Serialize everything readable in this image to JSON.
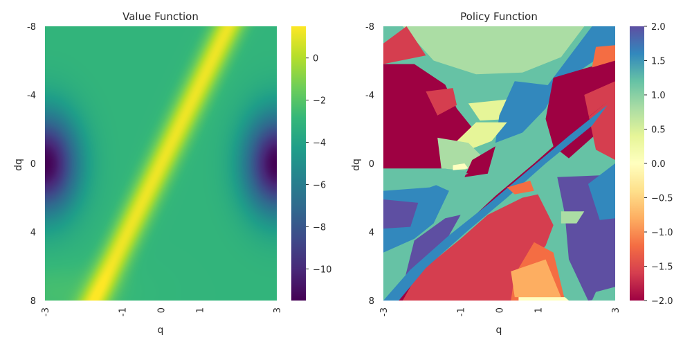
{
  "chart_data": [
    {
      "type": "heatmap",
      "title": "Value Function",
      "xlabel": "q",
      "ylabel": "dq",
      "x_tick_labels": [
        "-3",
        "-1",
        "0",
        "1",
        "3"
      ],
      "y_tick_labels": [
        "-8",
        "-4",
        "0",
        "4",
        "8"
      ],
      "xlim": [
        -3,
        3
      ],
      "ylim": [
        -8,
        8
      ],
      "colormap": "viridis",
      "colorbar": {
        "ticks": [
          "0",
          "−2",
          "−4",
          "−6",
          "−8",
          "−10"
        ],
        "tick_values": [
          0,
          -2,
          -4,
          -6,
          -8,
          -10
        ],
        "range": [
          -11.5,
          1.5
        ]
      },
      "description_features": {
        "ridge_value": 1.2,
        "background_value": -3.0,
        "edge_minimum_value": -11.5,
        "edge_minima_at": [
          [
            -3,
            0
          ],
          [
            3,
            0
          ]
        ]
      }
    },
    {
      "type": "heatmap",
      "title": "Policy Function",
      "xlabel": "q",
      "ylabel": "dq",
      "x_tick_labels": [
        "-3",
        "-1",
        "0",
        "1",
        "3"
      ],
      "y_tick_labels": [
        "-8",
        "-4",
        "0",
        "4",
        "8"
      ],
      "xlim": [
        -3,
        3
      ],
      "ylim": [
        -8,
        8
      ],
      "colormap": "Spectral",
      "colorbar": {
        "ticks": [
          "2.0",
          "1.5",
          "1.0",
          "0.5",
          "0.0",
          "−0.5",
          "−1.0",
          "−1.5",
          "−2.0"
        ],
        "tick_values": [
          2,
          1.5,
          1,
          0.5,
          0,
          -0.5,
          -1,
          -1.5,
          -2
        ],
        "range": [
          -2,
          2
        ]
      }
    }
  ],
  "colors": {
    "viridis": [
      "#440154",
      "#482878",
      "#3e4989",
      "#31688e",
      "#26828e",
      "#1f9e89",
      "#35b779",
      "#6ece58",
      "#b5de2b",
      "#fde725"
    ],
    "spectral": [
      "#9e0142",
      "#d53e4f",
      "#f46d43",
      "#fdae61",
      "#fee08b",
      "#ffffbf",
      "#e6f598",
      "#abdda4",
      "#66c2a5",
      "#3288bd",
      "#5e4fa2"
    ]
  }
}
